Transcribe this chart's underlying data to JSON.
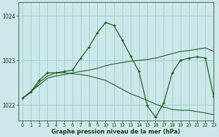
{
  "title": "Graphe pression niveau de la mer (hPa)",
  "background_color": "#cce8e8",
  "grid_color": "#99cccc",
  "line_color": "#1a5c1a",
  "xlim": [
    -0.5,
    23
  ],
  "ylim": [
    1021.65,
    1024.3
  ],
  "yticks": [
    1022,
    1023,
    1024
  ],
  "xticks": [
    0,
    1,
    2,
    3,
    4,
    5,
    6,
    7,
    8,
    9,
    10,
    11,
    12,
    13,
    14,
    15,
    16,
    17,
    18,
    19,
    20,
    21,
    22,
    23
  ],
  "series": [
    {
      "x": [
        0,
        1,
        2,
        3,
        4,
        5,
        6,
        7,
        8,
        9,
        10,
        11,
        12,
        13,
        14,
        15,
        16,
        17,
        18,
        19,
        20,
        21,
        22,
        23
      ],
      "y": [
        1022.15,
        1022.3,
        1022.45,
        1022.6,
        1022.65,
        1022.68,
        1022.72,
        1022.75,
        1022.78,
        1022.82,
        1022.88,
        1022.92,
        1022.95,
        1022.98,
        1023.0,
        1023.02,
        1023.05,
        1023.1,
        1023.15,
        1023.2,
        1023.22,
        1023.25,
        1023.28,
        1023.2
      ],
      "markers": false
    },
    {
      "x": [
        0,
        1,
        2,
        3,
        4,
        5,
        6,
        7,
        8,
        9,
        10,
        11,
        12,
        13,
        14,
        15,
        16,
        17,
        18,
        19,
        20,
        21,
        22,
        23
      ],
      "y": [
        1022.15,
        1022.28,
        1022.5,
        1022.65,
        1022.72,
        1022.72,
        1022.7,
        1022.68,
        1022.65,
        1022.6,
        1022.55,
        1022.45,
        1022.35,
        1022.25,
        1022.18,
        1022.1,
        1022.02,
        1021.95,
        1021.9,
        1021.88,
        1021.88,
        1021.85,
        1021.82,
        1021.78
      ],
      "markers": false
    },
    {
      "x": [
        0,
        1,
        2,
        3,
        4,
        5,
        6,
        7,
        8,
        9,
        10,
        11,
        12,
        13,
        14,
        15,
        16,
        17,
        18,
        19,
        20,
        21,
        22,
        23
      ],
      "y": [
        1022.15,
        1022.3,
        1022.55,
        1022.72,
        1022.72,
        1022.75,
        1022.78,
        1023.05,
        1023.3,
        1023.62,
        1023.85,
        1023.78,
        1023.45,
        1023.1,
        1022.75,
        1021.98,
        1021.72,
        1022.05,
        1022.72,
        1023.0,
        1023.05,
        1023.08,
        1023.05,
        1022.18
      ],
      "markers": true
    }
  ]
}
